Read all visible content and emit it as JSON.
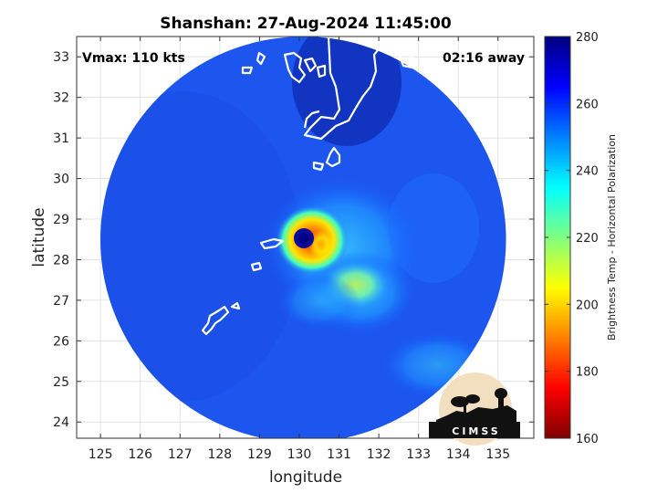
{
  "chart_data": {
    "type": "heatmap",
    "title": "Shanshan: 27-Aug-2024 11:45:00",
    "xlabel": "longitude",
    "ylabel": "latitude",
    "xlim": [
      124.4,
      135.9
    ],
    "ylim": [
      23.6,
      33.5
    ],
    "xticks": [
      125,
      126,
      127,
      128,
      129,
      130,
      131,
      132,
      133,
      134,
      135
    ],
    "yticks": [
      24,
      25,
      26,
      27,
      28,
      29,
      30,
      31,
      32,
      33
    ],
    "grid": true,
    "annotations": {
      "intensity": "Vmax: 110 kts",
      "time_offset": "02:16 away"
    },
    "colorbar": {
      "label": "Brightness Temp - Horizontal Polarization",
      "range": [
        160,
        280
      ],
      "ticks": [
        160,
        180,
        200,
        220,
        240,
        260,
        280
      ],
      "colormap": "jet",
      "colors": [
        "#7f0000",
        "#ff0000",
        "#ff8000",
        "#ffff00",
        "#80ff80",
        "#00ffff",
        "#0080ff",
        "#0000ff",
        "#00007f"
      ]
    },
    "swath": {
      "center_lon": 130.1,
      "center_lat": 28.5,
      "radius_deg_lat": 5.0,
      "background_brightness_temp": 262
    },
    "storm": {
      "eye_lon": 130.0,
      "eye_lat": 28.55,
      "eyewall_min_brightness_temp": 185
    }
  },
  "logo": {
    "text": "CIMSS"
  }
}
